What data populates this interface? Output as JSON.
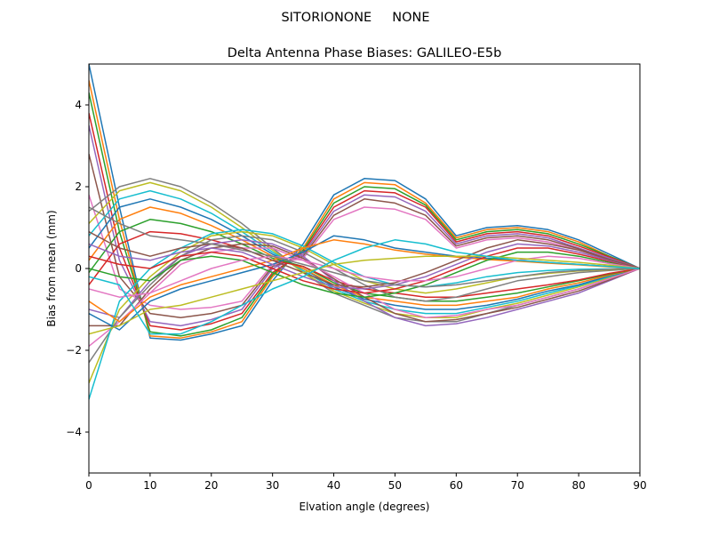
{
  "suptitle": "SITORIONONE     NONE",
  "chart_data": {
    "type": "line",
    "title": "Delta Antenna Phase Biases: GALILEO-E5b",
    "xlabel": "Elvation angle (degrees)",
    "ylabel": "Bias from mean (mm)",
    "xlim": [
      0,
      90
    ],
    "ylim": [
      -5,
      5
    ],
    "xticks": [
      0,
      10,
      20,
      30,
      40,
      50,
      60,
      70,
      80,
      90
    ],
    "yticks": [
      -4,
      -2,
      0,
      2,
      4
    ],
    "grid": false,
    "legend": "none",
    "x": [
      0,
      5,
      10,
      15,
      20,
      25,
      30,
      35,
      40,
      45,
      50,
      55,
      60,
      65,
      70,
      75,
      80,
      85,
      90
    ],
    "colors": [
      "#1f77b4",
      "#ff7f0e",
      "#2ca02c",
      "#d62728",
      "#9467bd",
      "#8c564b",
      "#e377c2",
      "#7f7f7f",
      "#bcbd22",
      "#17becf"
    ],
    "series": [
      {
        "values": [
          5.0,
          1.5,
          -1.7,
          -1.75,
          -1.6,
          -1.4,
          -0.3,
          0.6,
          1.8,
          2.2,
          2.15,
          1.7,
          0.8,
          1.0,
          1.05,
          0.95,
          0.7,
          0.35,
          0
        ]
      },
      {
        "values": [
          4.6,
          1.2,
          -1.65,
          -1.7,
          -1.55,
          -1.3,
          -0.2,
          0.5,
          1.7,
          2.1,
          2.05,
          1.6,
          0.75,
          0.95,
          1.0,
          0.9,
          0.65,
          0.3,
          0
        ]
      },
      {
        "values": [
          4.3,
          0.9,
          -1.55,
          -1.65,
          -1.5,
          -1.2,
          -0.15,
          0.45,
          1.6,
          2.0,
          1.95,
          1.55,
          0.7,
          0.9,
          0.95,
          0.85,
          0.6,
          0.3,
          0
        ]
      },
      {
        "values": [
          3.8,
          0.5,
          -1.4,
          -1.5,
          -1.35,
          -1.1,
          -0.1,
          0.4,
          1.5,
          1.9,
          1.85,
          1.5,
          0.65,
          0.85,
          0.9,
          0.8,
          0.55,
          0.28,
          0
        ]
      },
      {
        "values": [
          3.5,
          0.2,
          -1.3,
          -1.4,
          -1.25,
          -1.0,
          0.0,
          0.35,
          1.4,
          1.8,
          1.75,
          1.4,
          0.6,
          0.8,
          0.85,
          0.75,
          0.5,
          0.25,
          0
        ]
      },
      {
        "values": [
          2.8,
          -0.2,
          -1.1,
          -1.2,
          -1.1,
          -0.9,
          0.05,
          0.3,
          1.3,
          1.7,
          1.6,
          1.3,
          0.55,
          0.75,
          0.8,
          0.7,
          0.48,
          0.22,
          0
        ]
      },
      {
        "values": [
          1.8,
          -0.5,
          -0.9,
          -1.0,
          -0.95,
          -0.8,
          0.1,
          0.25,
          1.2,
          1.5,
          1.45,
          1.2,
          0.5,
          0.7,
          0.75,
          0.65,
          0.45,
          0.2,
          0
        ]
      },
      {
        "values": [
          1.4,
          2.0,
          2.2,
          2.0,
          1.6,
          1.1,
          0.5,
          -0.1,
          -0.6,
          -0.9,
          -1.2,
          -1.3,
          -1.3,
          -1.1,
          -0.9,
          -0.7,
          -0.5,
          -0.25,
          0
        ]
      },
      {
        "values": [
          1.1,
          1.9,
          2.1,
          1.9,
          1.5,
          1.0,
          0.45,
          -0.1,
          -0.55,
          -0.85,
          -1.1,
          -1.2,
          -1.2,
          -1.0,
          -0.85,
          -0.65,
          -0.45,
          -0.22,
          0
        ]
      },
      {
        "values": [
          0.8,
          1.7,
          1.9,
          1.7,
          1.35,
          0.9,
          0.4,
          -0.05,
          -0.5,
          -0.8,
          -1.0,
          -1.1,
          -1.1,
          -0.95,
          -0.8,
          -0.6,
          -0.42,
          -0.2,
          0
        ]
      },
      {
        "values": [
          0.5,
          1.5,
          1.7,
          1.5,
          1.2,
          0.8,
          0.35,
          0.0,
          -0.45,
          -0.75,
          -0.9,
          -1.0,
          -1.0,
          -0.9,
          -0.75,
          -0.55,
          -0.4,
          -0.18,
          0
        ]
      },
      {
        "values": [
          0.2,
          1.2,
          1.5,
          1.35,
          1.05,
          0.7,
          0.3,
          0.0,
          -0.4,
          -0.7,
          -0.8,
          -0.9,
          -0.9,
          -0.8,
          -0.7,
          -0.5,
          -0.35,
          -0.16,
          0
        ]
      },
      {
        "values": [
          -0.1,
          0.9,
          1.2,
          1.1,
          0.9,
          0.6,
          0.25,
          0.05,
          -0.35,
          -0.6,
          -0.7,
          -0.8,
          -0.8,
          -0.7,
          -0.6,
          -0.45,
          -0.3,
          -0.14,
          0
        ]
      },
      {
        "values": [
          -0.4,
          0.6,
          0.9,
          0.85,
          0.7,
          0.5,
          0.2,
          0.05,
          -0.3,
          -0.5,
          -0.6,
          -0.7,
          -0.7,
          -0.6,
          -0.5,
          -0.4,
          -0.28,
          -0.12,
          0
        ]
      },
      {
        "values": [
          -1.0,
          -1.2,
          -0.3,
          0.3,
          0.6,
          0.7,
          0.6,
          0.3,
          -0.3,
          -0.8,
          -1.2,
          -1.4,
          -1.35,
          -1.2,
          -1.0,
          -0.8,
          -0.6,
          -0.3,
          0
        ]
      },
      {
        "values": [
          -1.4,
          -1.4,
          -0.5,
          0.2,
          0.5,
          0.6,
          0.55,
          0.25,
          -0.25,
          -0.7,
          -1.1,
          -1.3,
          -1.25,
          -1.1,
          -0.95,
          -0.75,
          -0.55,
          -0.28,
          0
        ]
      },
      {
        "values": [
          -1.9,
          -1.3,
          -0.6,
          0.1,
          0.4,
          0.5,
          0.5,
          0.2,
          -0.2,
          -0.6,
          -1.0,
          -1.2,
          -1.15,
          -1.0,
          -0.9,
          -0.7,
          -0.5,
          -0.25,
          0
        ]
      },
      {
        "values": [
          -2.3,
          -1.2,
          -0.4,
          0.3,
          0.7,
          0.8,
          0.7,
          0.4,
          0.0,
          -0.4,
          -0.7,
          -0.8,
          -0.7,
          -0.5,
          -0.3,
          -0.2,
          -0.1,
          -0.05,
          0
        ]
      },
      {
        "values": [
          -2.8,
          -1.0,
          -0.2,
          0.4,
          0.8,
          0.9,
          0.8,
          0.5,
          0.1,
          -0.3,
          -0.5,
          -0.6,
          -0.5,
          -0.35,
          -0.2,
          -0.12,
          -0.06,
          -0.03,
          0
        ]
      },
      {
        "values": [
          -3.2,
          -0.8,
          0.0,
          0.5,
          0.85,
          0.95,
          0.85,
          0.55,
          0.15,
          -0.2,
          -0.4,
          -0.45,
          -0.35,
          -0.2,
          -0.1,
          -0.05,
          -0.02,
          -0.01,
          0
        ]
      },
      {
        "values": [
          -1.1,
          -1.5,
          -0.8,
          -0.5,
          -0.3,
          -0.1,
          0.1,
          0.4,
          0.8,
          0.7,
          0.5,
          0.4,
          0.3,
          0.25,
          0.2,
          0.15,
          0.1,
          0.05,
          0
        ]
      },
      {
        "values": [
          -0.8,
          -1.3,
          -0.7,
          -0.4,
          -0.2,
          0.0,
          0.2,
          0.5,
          0.7,
          0.6,
          0.45,
          0.35,
          0.28,
          0.22,
          0.18,
          0.13,
          0.09,
          0.04,
          0
        ]
      },
      {
        "values": [
          0.0,
          -0.2,
          -0.3,
          0.2,
          0.3,
          0.2,
          -0.1,
          -0.4,
          -0.6,
          -0.7,
          -0.6,
          -0.4,
          -0.1,
          0.2,
          0.4,
          0.4,
          0.3,
          0.15,
          0
        ]
      },
      {
        "values": [
          0.3,
          0.1,
          0.0,
          0.3,
          0.4,
          0.3,
          0.0,
          -0.3,
          -0.5,
          -0.6,
          -0.5,
          -0.3,
          0.0,
          0.3,
          0.5,
          0.5,
          0.35,
          0.18,
          0
        ]
      },
      {
        "values": [
          0.6,
          0.3,
          0.2,
          0.4,
          0.5,
          0.4,
          0.1,
          -0.2,
          -0.45,
          -0.5,
          -0.4,
          -0.2,
          0.1,
          0.4,
          0.6,
          0.55,
          0.4,
          0.2,
          0
        ]
      },
      {
        "values": [
          0.9,
          0.5,
          0.3,
          0.5,
          0.6,
          0.5,
          0.2,
          -0.1,
          -0.4,
          -0.45,
          -0.35,
          -0.1,
          0.2,
          0.5,
          0.7,
          0.6,
          0.45,
          0.22,
          0
        ]
      },
      {
        "values": [
          -0.5,
          -0.7,
          -0.6,
          -0.3,
          0.0,
          0.2,
          0.3,
          0.2,
          0.0,
          -0.2,
          -0.3,
          -0.3,
          -0.2,
          0.0,
          0.2,
          0.3,
          0.25,
          0.12,
          0
        ]
      },
      {
        "values": [
          1.5,
          1.1,
          0.8,
          0.7,
          0.6,
          0.45,
          0.3,
          0.1,
          -0.1,
          -0.3,
          -0.4,
          -0.45,
          -0.4,
          -0.3,
          -0.2,
          -0.1,
          -0.05,
          -0.02,
          0
        ]
      },
      {
        "values": [
          -1.6,
          -1.4,
          -1.0,
          -0.9,
          -0.7,
          -0.5,
          -0.3,
          -0.1,
          0.1,
          0.2,
          0.25,
          0.3,
          0.3,
          0.3,
          0.25,
          0.2,
          0.15,
          0.08,
          0
        ]
      },
      {
        "values": [
          -0.2,
          -0.4,
          -1.6,
          -1.6,
          -1.3,
          -0.9,
          -0.5,
          -0.2,
          0.2,
          0.5,
          0.7,
          0.6,
          0.4,
          0.3,
          0.2,
          0.15,
          0.1,
          0.05,
          0
        ]
      }
    ]
  }
}
